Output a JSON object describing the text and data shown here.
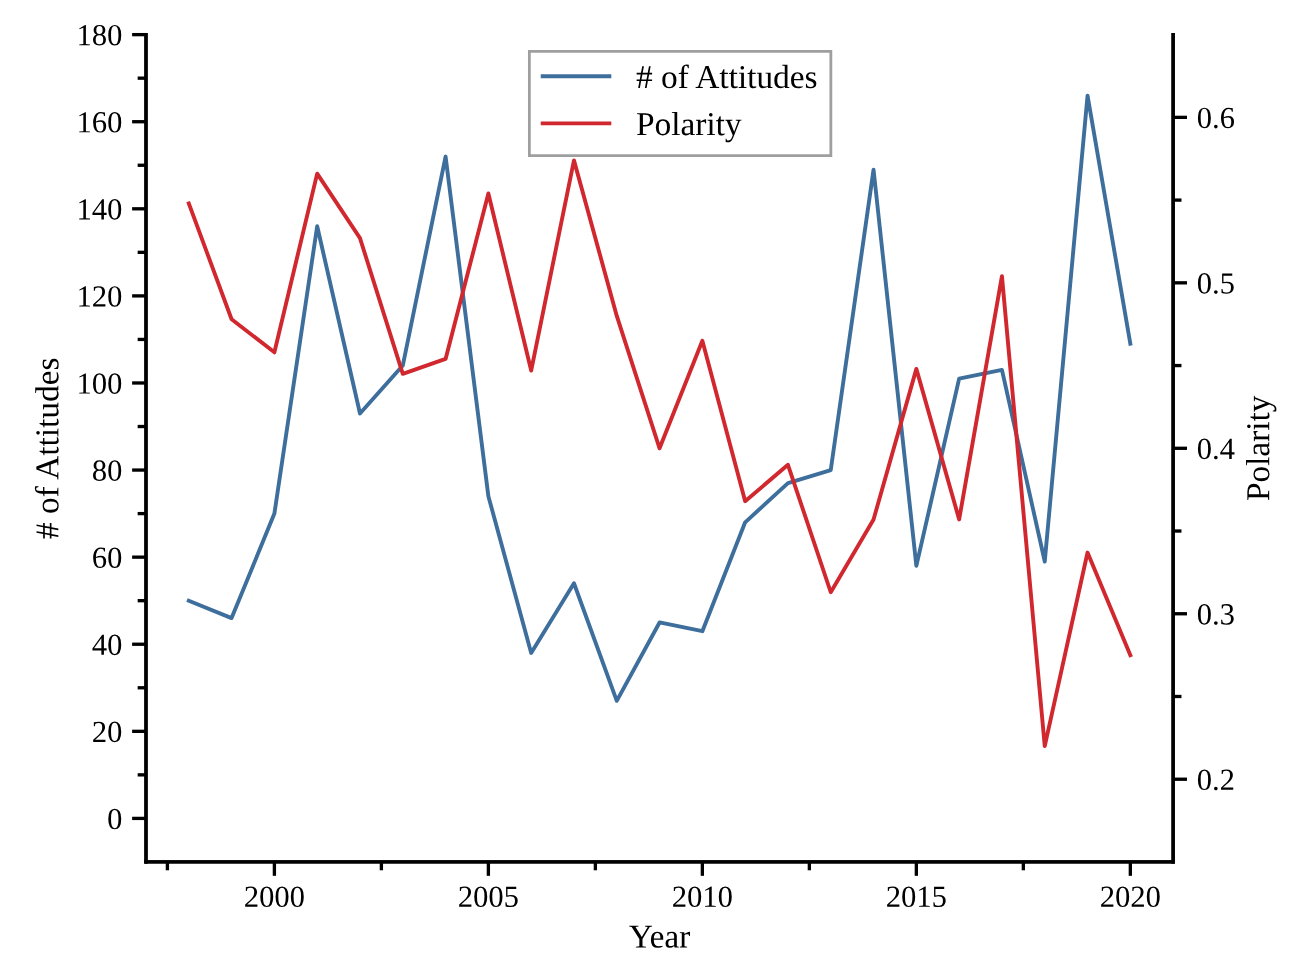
{
  "chart_data": {
    "type": "line",
    "xlabel": "Year",
    "ylabel": "# of Attitudes",
    "y2label": "Polarity",
    "x": [
      1998,
      1999,
      2000,
      2001,
      2002,
      2003,
      2004,
      2005,
      2006,
      2007,
      2008,
      2009,
      2010,
      2011,
      2012,
      2013,
      2014,
      2015,
      2016,
      2017,
      2018,
      2019,
      2020
    ],
    "series": [
      {
        "name": "# of Attitudes",
        "color": "#3d6e9c",
        "values": [
          50,
          46,
          70,
          136,
          93,
          104,
          152,
          74,
          38,
          54,
          27,
          45,
          43,
          68,
          77,
          80,
          149,
          58,
          101,
          103,
          59,
          166,
          109
        ]
      },
      {
        "name": "Polarity",
        "color": "#d0282e",
        "axis": "y2",
        "values": [
          0.548,
          0.478,
          0.458,
          0.566,
          0.527,
          0.445,
          0.454,
          0.554,
          0.447,
          0.574,
          0.48,
          0.4,
          0.465,
          0.368,
          0.39,
          0.313,
          0.357,
          0.448,
          0.357,
          0.504,
          0.22,
          0.337,
          0.275
        ]
      }
    ],
    "xlim": [
      1997,
      2021
    ],
    "xticks": [
      {
        "value": 1997.5,
        "label": null
      },
      2000,
      {
        "value": 2002.5,
        "label": null
      },
      2005,
      {
        "value": 2007.5,
        "label": null
      },
      2010,
      {
        "value": 2012.5,
        "label": null
      },
      2015,
      {
        "value": 2017.5,
        "label": null
      },
      2020
    ],
    "ylim": [
      -10,
      180
    ],
    "yticks": [
      0,
      {
        "value": 10,
        "label": null
      },
      20,
      {
        "value": 30,
        "label": null
      },
      40,
      {
        "value": 50,
        "label": null
      },
      60,
      {
        "value": 70,
        "label": null
      },
      80,
      {
        "value": 90,
        "label": null
      },
      100,
      {
        "value": 110,
        "label": null
      },
      120,
      {
        "value": 130,
        "label": null
      },
      140,
      {
        "value": 150,
        "label": null
      },
      160,
      {
        "value": 170,
        "label": null
      },
      180
    ],
    "y2lim": [
      0.15,
      0.65
    ],
    "y2ticks": [
      0.2,
      {
        "value": 0.25,
        "label": null
      },
      0.3,
      {
        "value": 0.35,
        "label": null
      },
      0.4,
      {
        "value": 0.45,
        "label": null
      },
      0.5,
      {
        "value": 0.55,
        "label": null
      },
      0.6
    ],
    "legend": "top",
    "grid": false,
    "marker": "none",
    "line_style": "solid"
  }
}
